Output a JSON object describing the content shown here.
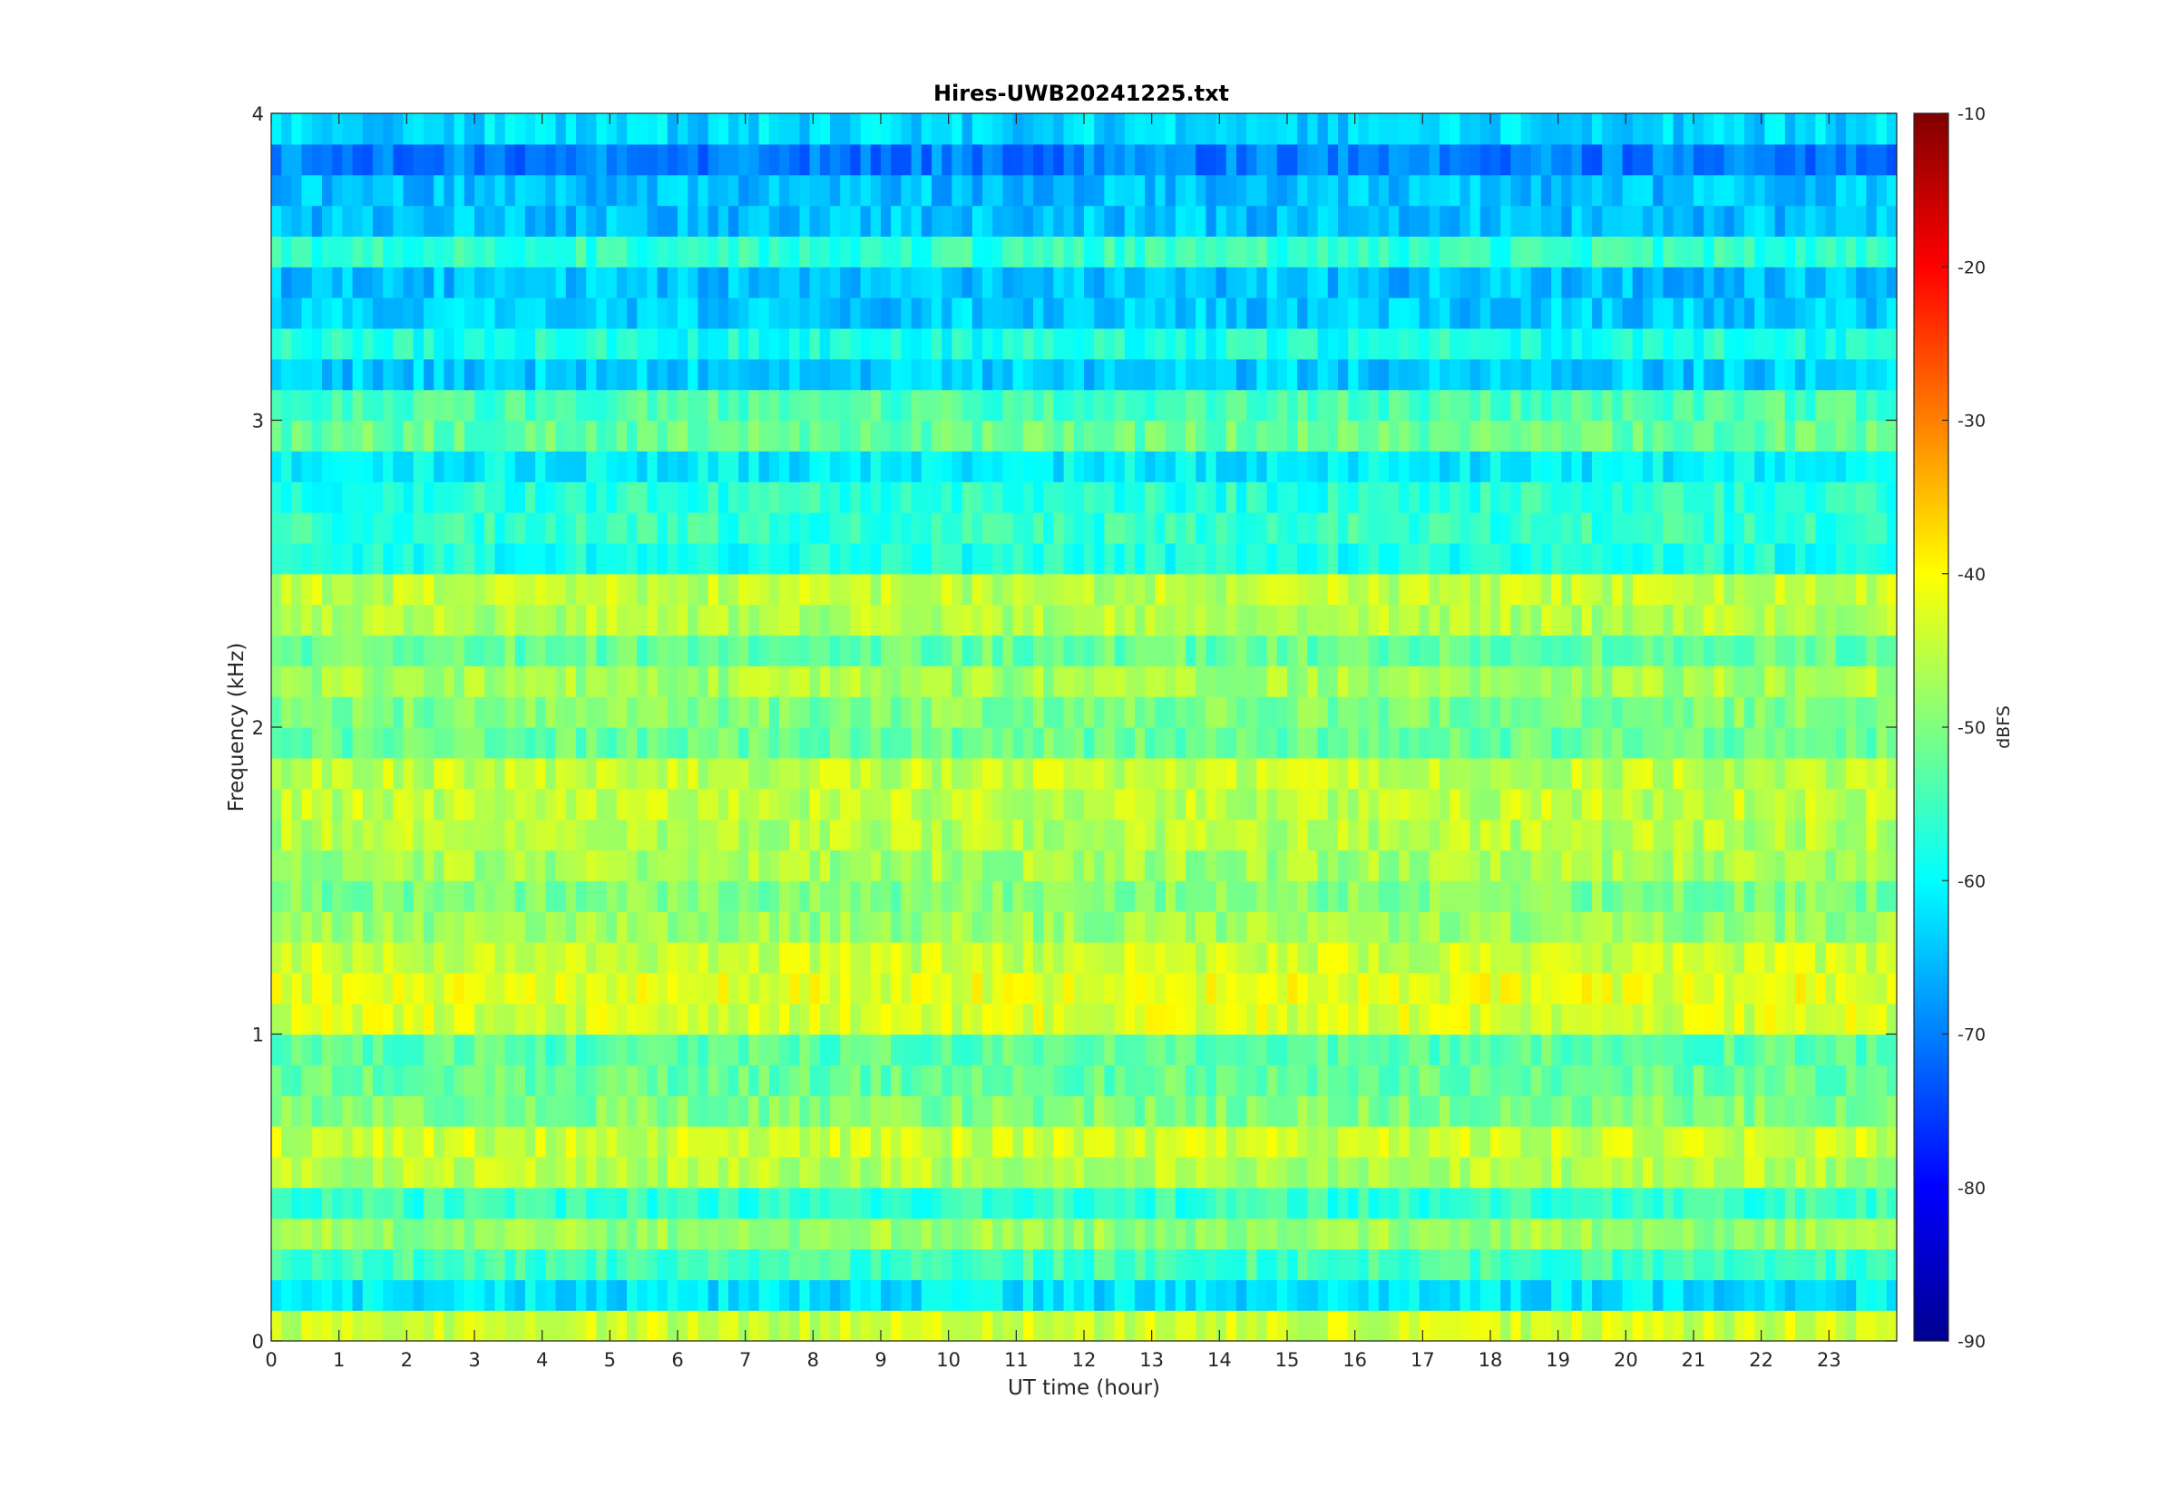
{
  "chart_data": {
    "type": "heatmap",
    "title": "Hires-UWB20241225.txt",
    "xlabel": "UT time (hour)",
    "ylabel": "Frequency (kHz)",
    "xlim": [
      0,
      24
    ],
    "ylim": [
      0,
      4
    ],
    "x_ticks": [
      "0",
      "1",
      "2",
      "3",
      "4",
      "5",
      "6",
      "7",
      "8",
      "9",
      "10",
      "11",
      "12",
      "13",
      "14",
      "15",
      "16",
      "17",
      "18",
      "19",
      "20",
      "21",
      "22",
      "23"
    ],
    "y_ticks": [
      "0",
      "1",
      "2",
      "3",
      "4"
    ],
    "colorbar": {
      "label": "dBFS",
      "range": [
        -90,
        -10
      ],
      "ticks": [
        "-10",
        "-20",
        "-30",
        "-40",
        "-50",
        "-60",
        "-70",
        "-80",
        "-90"
      ],
      "colormap": "jet"
    },
    "band_levels_dbfs": {
      "freq_khz": [
        0.05,
        0.15,
        0.25,
        0.35,
        0.45,
        0.55,
        0.65,
        0.75,
        0.85,
        0.95,
        1.05,
        1.15,
        1.25,
        1.35,
        1.45,
        1.55,
        1.65,
        1.75,
        1.85,
        1.95,
        2.05,
        2.15,
        2.25,
        2.35,
        2.45,
        2.55,
        2.65,
        2.75,
        2.85,
        2.95,
        3.05,
        3.15,
        3.25,
        3.35,
        3.45,
        3.55,
        3.65,
        3.75,
        3.85,
        3.95
      ],
      "level": [
        -44,
        -62,
        -55,
        -48,
        -56,
        -46,
        -44,
        -50,
        -52,
        -53,
        -43,
        -42,
        -44,
        -48,
        -50,
        -47,
        -46,
        -45,
        -45,
        -52,
        -50,
        -47,
        -52,
        -46,
        -45,
        -58,
        -56,
        -57,
        -61,
        -52,
        -54,
        -64,
        -58,
        -64,
        -65,
        -56,
        -65,
        -65,
        -70,
        -63
      ]
    }
  }
}
